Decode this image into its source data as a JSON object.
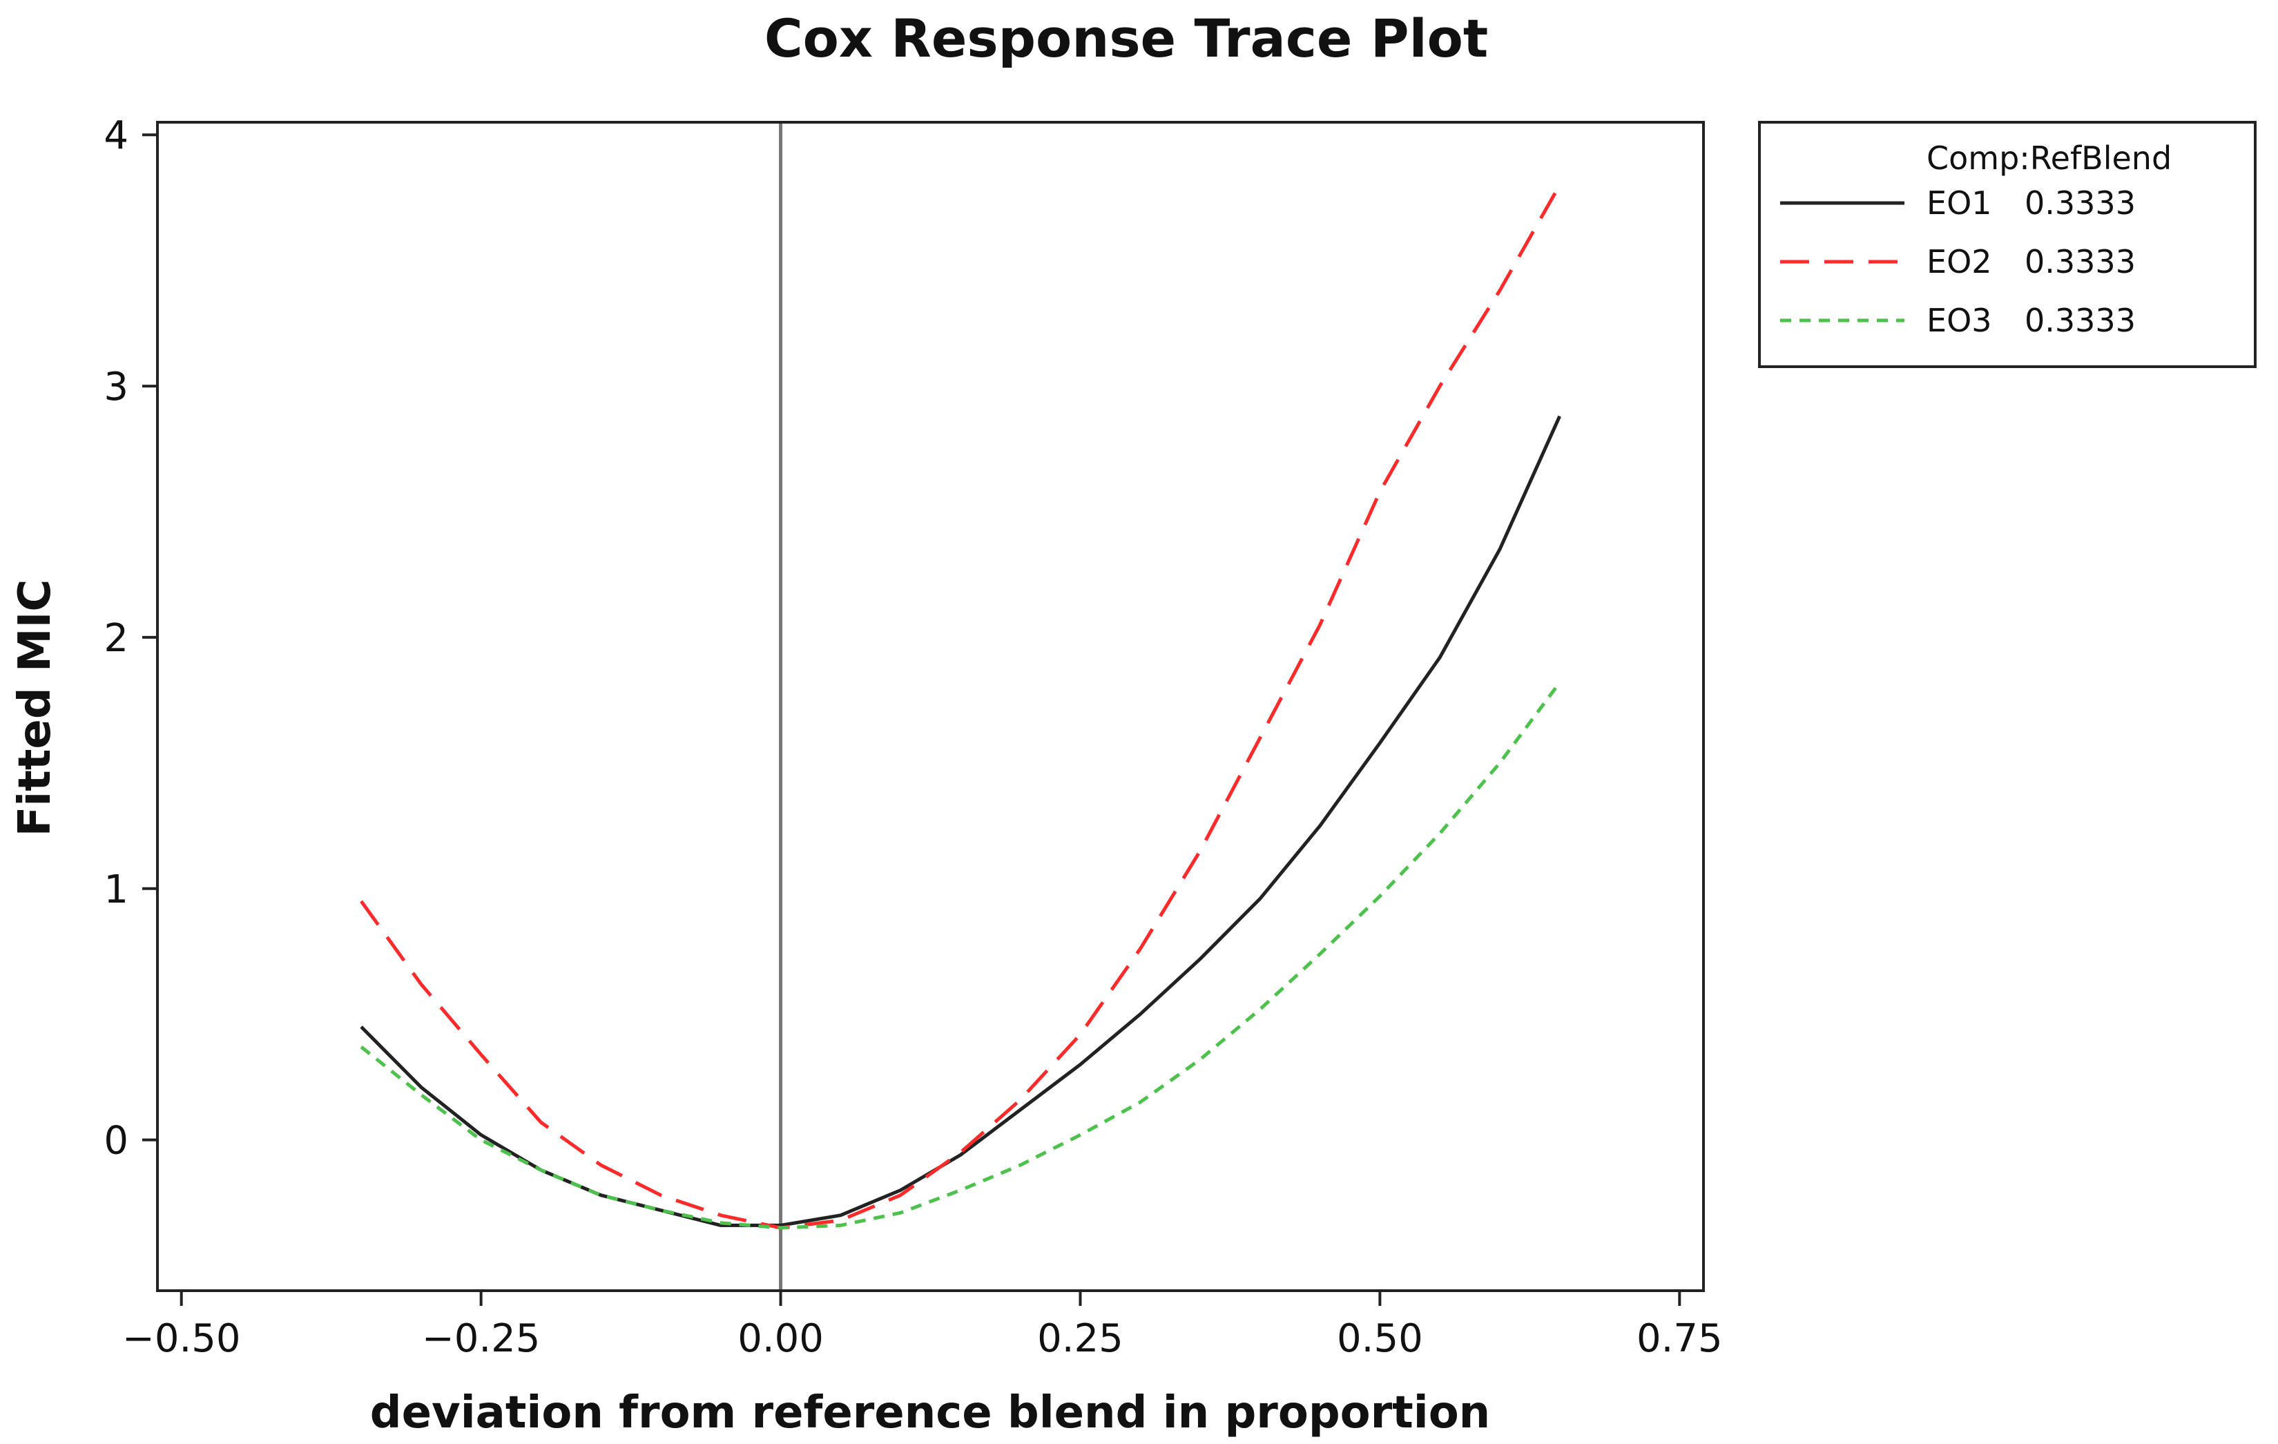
{
  "chart_data": {
    "type": "line",
    "title": "Cox Response Trace Plot",
    "xlabel": "deviation from reference blend in proportion",
    "ylabel": "Fitted MIC",
    "xlim": [
      -0.52,
      0.77
    ],
    "ylim": [
      -0.6,
      4.05
    ],
    "xticks": [
      -0.5,
      -0.25,
      0.0,
      0.25,
      0.5,
      0.75
    ],
    "xtick_labels": [
      "−0.50",
      "−0.25",
      "0.00",
      "0.25",
      "0.50",
      "0.75"
    ],
    "yticks": [
      0,
      1,
      2,
      3,
      4
    ],
    "ytick_labels": [
      "0",
      "1",
      "2",
      "3",
      "4"
    ],
    "reference_line_x": 0.0,
    "legend": {
      "title": "Comp:RefBlend",
      "position": "outside-right-top"
    },
    "series": [
      {
        "name": "EO1",
        "ref_value": "0.3333",
        "color": "#222222",
        "dash": "solid",
        "x": [
          -0.35,
          -0.3,
          -0.25,
          -0.2,
          -0.15,
          -0.1,
          -0.05,
          0.0,
          0.05,
          0.1,
          0.15,
          0.2,
          0.25,
          0.3,
          0.35,
          0.4,
          0.45,
          0.5,
          0.55,
          0.6,
          0.65
        ],
        "values": [
          0.45,
          0.21,
          0.02,
          -0.12,
          -0.22,
          -0.28,
          -0.34,
          -0.34,
          -0.3,
          -0.2,
          -0.06,
          0.12,
          0.3,
          0.5,
          0.72,
          0.96,
          1.25,
          1.58,
          1.92,
          2.35,
          2.88
        ]
      },
      {
        "name": "EO2",
        "ref_value": "0.3333",
        "color": "#ff2a2a",
        "dash": "long-dash",
        "x": [
          -0.35,
          -0.3,
          -0.25,
          -0.2,
          -0.15,
          -0.1,
          -0.05,
          0.0,
          0.05,
          0.1,
          0.15,
          0.2,
          0.25,
          0.3,
          0.35,
          0.4,
          0.45,
          0.5,
          0.55,
          0.6,
          0.65
        ],
        "values": [
          0.95,
          0.62,
          0.34,
          0.07,
          -0.1,
          -0.22,
          -0.3,
          -0.35,
          -0.32,
          -0.22,
          -0.05,
          0.16,
          0.42,
          0.76,
          1.15,
          1.6,
          2.05,
          2.58,
          3.0,
          3.38,
          3.8
        ]
      },
      {
        "name": "EO3",
        "ref_value": "0.3333",
        "color": "#4cc24c",
        "dash": "short-dash",
        "x": [
          -0.35,
          -0.3,
          -0.25,
          -0.2,
          -0.15,
          -0.1,
          -0.05,
          0.0,
          0.05,
          0.1,
          0.15,
          0.2,
          0.25,
          0.3,
          0.35,
          0.4,
          0.45,
          0.5,
          0.55,
          0.6,
          0.65
        ],
        "values": [
          0.37,
          0.18,
          0.0,
          -0.12,
          -0.22,
          -0.28,
          -0.33,
          -0.35,
          -0.34,
          -0.29,
          -0.2,
          -0.1,
          0.02,
          0.15,
          0.32,
          0.52,
          0.74,
          0.97,
          1.22,
          1.5,
          1.82
        ]
      }
    ]
  }
}
